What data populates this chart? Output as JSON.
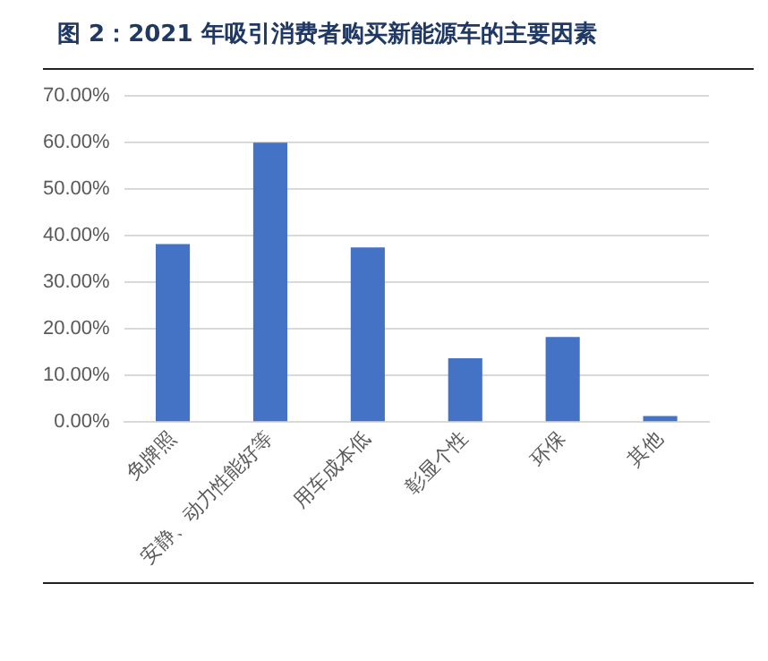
{
  "chart_data": {
    "type": "bar",
    "title": "图 2：2021 年吸引消费者购买新能源车的主要因素",
    "categories": [
      "免牌照",
      "安静、动力性能好等",
      "用车成本低",
      "彰显个性",
      "环保",
      "其他"
    ],
    "values": [
      38.2,
      60,
      37.5,
      13.7,
      18.3,
      1.3
    ],
    "color": "#4472c4",
    "ylim": [
      0,
      70
    ],
    "yticks": [
      {
        "value": 0,
        "label": "0.00%"
      },
      {
        "value": 10,
        "label": "10.00%"
      },
      {
        "value": 20,
        "label": "20.00%"
      },
      {
        "value": 30,
        "label": "30.00%"
      },
      {
        "value": 40,
        "label": "40.00%"
      },
      {
        "value": 50,
        "label": "50.00%"
      },
      {
        "value": 60,
        "label": "60.00%"
      },
      {
        "value": 70,
        "label": "70.00%"
      }
    ],
    "grid": "y",
    "legend": false
  }
}
